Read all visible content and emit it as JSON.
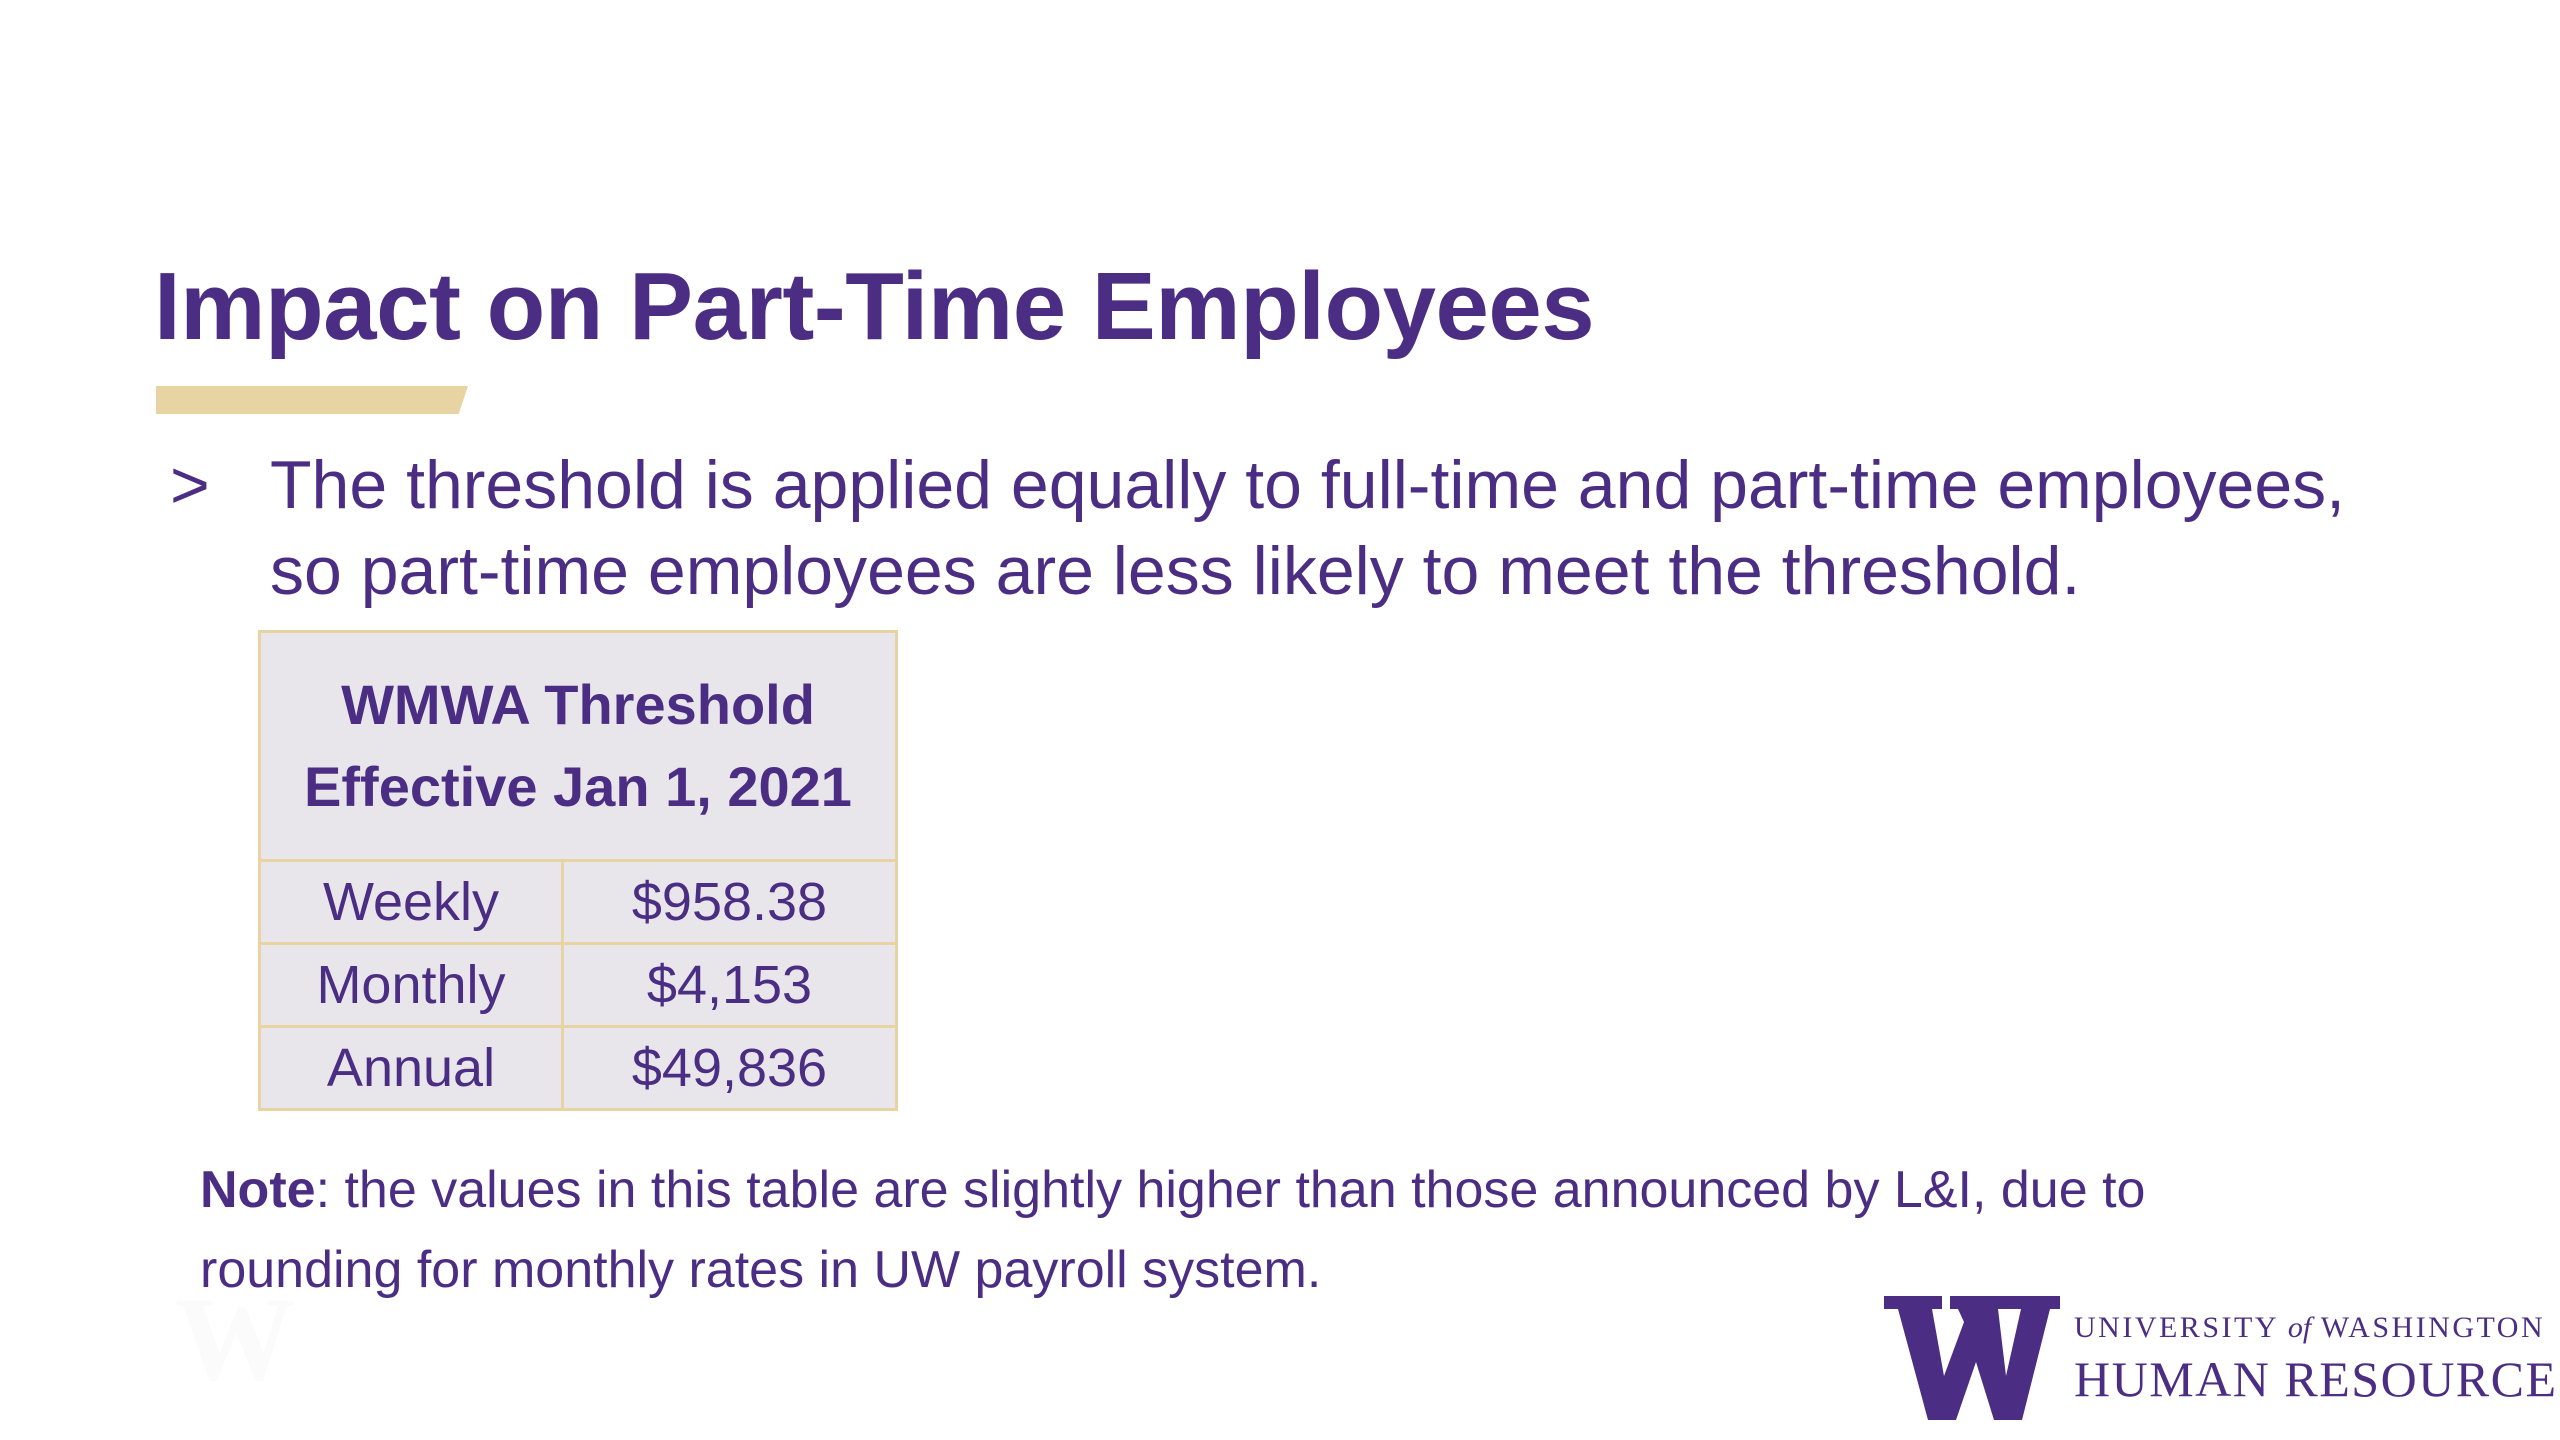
{
  "slide": {
    "title": "Impact on Part-Time Employees",
    "bullet_marker": ">",
    "bullet_text": "The threshold is applied equally to full-time and part-time employees, so part-time employees are less likely to meet the threshold."
  },
  "table": {
    "header_line1": "WMWA Threshold",
    "header_line2": "Effective Jan 1, 2021",
    "rows": [
      {
        "label": "Weekly",
        "value": "$958.38"
      },
      {
        "label": "Monthly",
        "value": "$4,153"
      },
      {
        "label": "Annual",
        "value": "$49,836"
      }
    ]
  },
  "note": {
    "label": "Note",
    "text": ": the values in this table are slightly higher than those announced by L&I, due to rounding for monthly rates in UW payroll system."
  },
  "logo": {
    "line1_a": "UNIVERSITY",
    "line1_of": "of",
    "line1_b": "WASHINGTON",
    "line2": "HUMAN RESOURCES"
  },
  "colors": {
    "uw_purple": "#4b2e83",
    "uw_gold": "#e8d3a2",
    "table_bg": "#e8e6ea"
  },
  "icons": {
    "bullet": "chevron-right-glyph",
    "logo_mark": "uw-w-logo"
  }
}
